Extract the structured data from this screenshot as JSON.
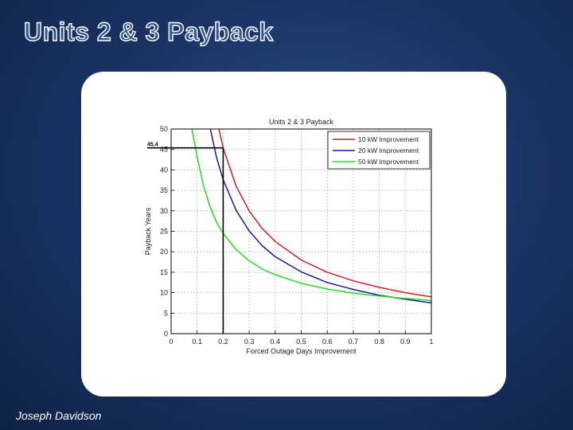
{
  "slide": {
    "title": "Units 2 & 3 Payback",
    "author": "Joseph Davidson"
  },
  "chart_data": {
    "type": "line",
    "title": "Units 2 & 3 Payback",
    "xlabel": "Forced Outage Days Improvement",
    "ylabel": "Payback Years",
    "xlim": [
      0,
      1
    ],
    "ylim": [
      0,
      50
    ],
    "xticks": [
      0,
      0.1,
      0.2,
      0.3,
      0.4,
      0.5,
      0.6,
      0.7,
      0.8,
      0.9,
      1
    ],
    "xtick_labels": [
      "0",
      "0.1",
      "0.2",
      "0.3",
      "0.4",
      "0.5",
      "0.6",
      "0.7",
      "0.8",
      "0.9",
      "1"
    ],
    "yticks": [
      0,
      5,
      10,
      15,
      20,
      25,
      30,
      35,
      40,
      45,
      50
    ],
    "ytick_labels": [
      "0",
      "5",
      "10",
      "15",
      "20",
      "25",
      "30",
      "35",
      "40",
      "45",
      "50"
    ],
    "grid": true,
    "legend_position": "top-right",
    "series": [
      {
        "name": "10 kW Improvement",
        "color": "#d02020",
        "x": [
          0.15,
          0.175,
          0.2,
          0.25,
          0.3,
          0.35,
          0.4,
          0.5,
          0.6,
          0.7,
          0.8,
          0.9,
          1.0
        ],
        "y": [
          60.0,
          52.5,
          45.4,
          36.0,
          30.0,
          25.7,
          22.5,
          18.0,
          15.0,
          12.9,
          11.3,
          10.0,
          9.0
        ]
      },
      {
        "name": "20 kW Improvement",
        "color": "#1a1aa8",
        "x": [
          0.13,
          0.15,
          0.175,
          0.2,
          0.25,
          0.3,
          0.35,
          0.4,
          0.5,
          0.6,
          0.7,
          0.8,
          0.9,
          1.0
        ],
        "y": [
          58.0,
          50.2,
          43.0,
          37.6,
          30.1,
          25.1,
          21.5,
          18.8,
          15.1,
          12.5,
          10.8,
          9.4,
          8.4,
          7.5
        ]
      },
      {
        "name": "50 kW Improvement",
        "color": "#22dd22",
        "x": [
          0.08,
          0.1,
          0.125,
          0.15,
          0.175,
          0.2,
          0.25,
          0.3,
          0.35,
          0.4,
          0.5,
          0.6,
          0.7,
          0.8,
          0.9,
          1.0
        ],
        "y": [
          50.0,
          43.2,
          36.0,
          31.0,
          27.2,
          24.5,
          20.5,
          17.8,
          15.8,
          14.4,
          12.3,
          10.9,
          9.9,
          9.2,
          8.6,
          8.1
        ]
      }
    ],
    "annotations": [
      {
        "text": "45.4",
        "x": 0.2,
        "y": 45.4
      }
    ]
  }
}
